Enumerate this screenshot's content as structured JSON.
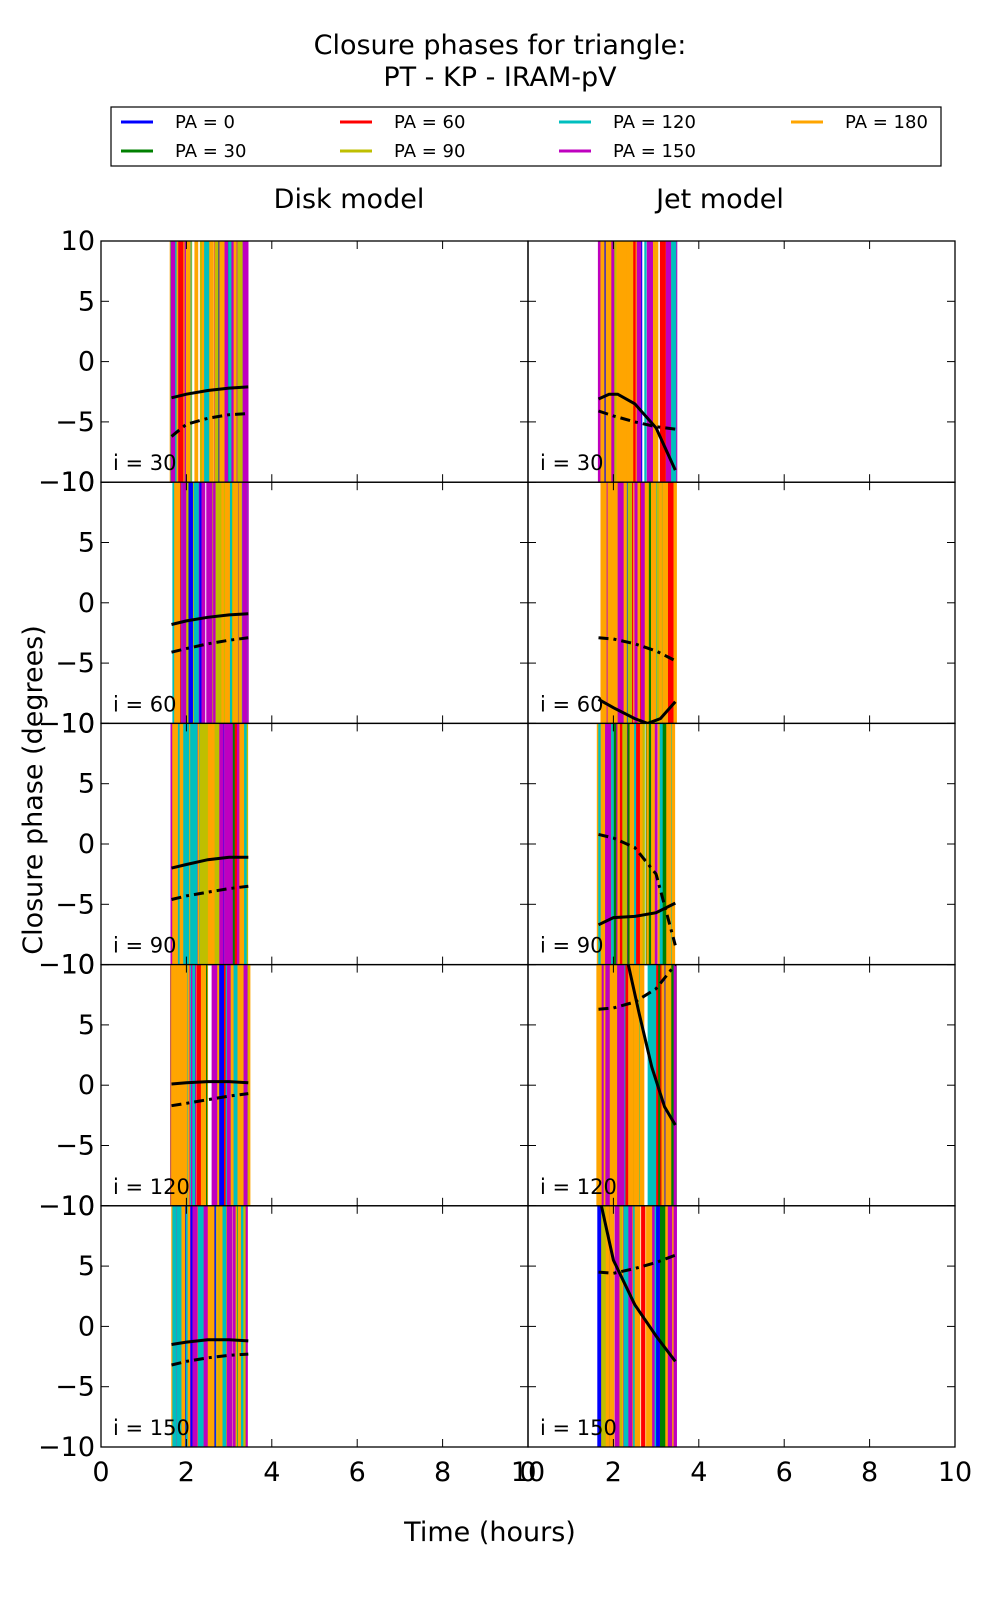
{
  "chart_data": {
    "type": "line",
    "title": "Closure phases for triangle:",
    "subtitle": "PT - KP - IRAM-pV",
    "xlabel": "Time (hours)",
    "ylabel": "Closure phase (degrees)",
    "xlim": [
      0,
      10
    ],
    "ylim": [
      -10,
      10
    ],
    "xticks": [
      "0",
      "2",
      "4",
      "6",
      "8",
      "10"
    ],
    "yticks": [
      "10",
      "5",
      "0",
      "−5",
      "−10"
    ],
    "grid": false,
    "legend_placement": "top",
    "columns": [
      "Disk model",
      "Jet model"
    ],
    "rows": [
      "i = 30",
      "i = 60",
      "i = 90",
      "i = 120",
      "i = 150"
    ],
    "legend": [
      {
        "label": "PA = 0",
        "color": "#0000ff"
      },
      {
        "label": "PA = 30",
        "color": "#008000"
      },
      {
        "label": "PA = 60",
        "color": "#ff0000"
      },
      {
        "label": "PA = 90",
        "color": "#bfbf00"
      },
      {
        "label": "PA = 120",
        "color": "#00bfbf"
      },
      {
        "label": "PA = 150",
        "color": "#bf00bf"
      },
      {
        "label": "PA = 180",
        "color": "#ffa500"
      }
    ],
    "time_range": [
      1.65,
      3.45
    ],
    "curves": [
      [
        [
          [
            1.65,
            -3.0
          ],
          [
            2.0,
            -2.7
          ],
          [
            2.5,
            -2.4
          ],
          [
            3.0,
            -2.2
          ],
          [
            3.45,
            -2.1
          ]
        ],
        [
          [
            1.65,
            -6.2
          ],
          [
            2.0,
            -5.2
          ],
          [
            2.5,
            -4.7
          ],
          [
            3.0,
            -4.4
          ],
          [
            3.45,
            -4.3
          ]
        ]
      ],
      [
        [
          [
            1.65,
            -1.8
          ],
          [
            2.0,
            -1.5
          ],
          [
            2.5,
            -1.2
          ],
          [
            3.0,
            -1.0
          ],
          [
            3.45,
            -0.9
          ]
        ],
        [
          [
            1.65,
            -4.1
          ],
          [
            2.0,
            -3.8
          ],
          [
            2.5,
            -3.4
          ],
          [
            3.0,
            -3.1
          ],
          [
            3.45,
            -2.9
          ]
        ]
      ],
      [
        [
          [
            1.65,
            -2.0
          ],
          [
            2.0,
            -1.7
          ],
          [
            2.5,
            -1.3
          ],
          [
            3.0,
            -1.1
          ],
          [
            3.45,
            -1.1
          ]
        ],
        [
          [
            1.65,
            -4.6
          ],
          [
            2.0,
            -4.3
          ],
          [
            2.5,
            -4.0
          ],
          [
            3.0,
            -3.7
          ],
          [
            3.45,
            -3.5
          ]
        ]
      ],
      [
        [
          [
            1.65,
            0.1
          ],
          [
            2.0,
            0.2
          ],
          [
            2.5,
            0.3
          ],
          [
            3.0,
            0.3
          ],
          [
            3.45,
            0.2
          ]
        ],
        [
          [
            1.65,
            -1.7
          ],
          [
            2.0,
            -1.5
          ],
          [
            2.5,
            -1.2
          ],
          [
            3.0,
            -0.9
          ],
          [
            3.45,
            -0.7
          ]
        ]
      ],
      [
        [
          [
            1.65,
            -1.5
          ],
          [
            2.0,
            -1.3
          ],
          [
            2.5,
            -1.1
          ],
          [
            3.0,
            -1.1
          ],
          [
            3.45,
            -1.2
          ]
        ],
        [
          [
            1.65,
            -3.2
          ],
          [
            2.0,
            -2.9
          ],
          [
            2.5,
            -2.6
          ],
          [
            3.0,
            -2.4
          ],
          [
            3.45,
            -2.3
          ]
        ]
      ],
      [
        [
          [
            1.65,
            -3.1
          ],
          [
            1.9,
            -2.7
          ],
          [
            2.1,
            -2.7
          ],
          [
            2.5,
            -3.5
          ],
          [
            3.0,
            -5.5
          ],
          [
            3.45,
            -9.0
          ]
        ],
        [
          [
            1.65,
            -4.1
          ],
          [
            2.0,
            -4.5
          ],
          [
            2.5,
            -5.0
          ],
          [
            3.0,
            -5.4
          ],
          [
            3.45,
            -5.6
          ]
        ]
      ],
      [
        [
          [
            1.65,
            -8.0
          ],
          [
            2.0,
            -8.7
          ],
          [
            2.5,
            -9.6
          ],
          [
            2.8,
            -10.0
          ],
          [
            3.1,
            -9.6
          ],
          [
            3.45,
            -8.2
          ]
        ],
        [
          [
            1.65,
            -2.9
          ],
          [
            2.0,
            -3.0
          ],
          [
            2.5,
            -3.4
          ],
          [
            3.0,
            -4.0
          ],
          [
            3.45,
            -4.8
          ]
        ]
      ],
      [
        [
          [
            1.65,
            -6.7
          ],
          [
            2.0,
            -6.1
          ],
          [
            2.5,
            -6.0
          ],
          [
            3.0,
            -5.7
          ],
          [
            3.45,
            -4.9
          ]
        ],
        [
          [
            1.65,
            0.8
          ],
          [
            2.0,
            0.5
          ],
          [
            2.5,
            -0.3
          ],
          [
            3.0,
            -2.5
          ],
          [
            3.45,
            -8.4
          ]
        ]
      ],
      [
        [
          [
            2.35,
            10.0
          ],
          [
            2.6,
            6.0
          ],
          [
            2.9,
            1.5
          ],
          [
            3.2,
            -1.8
          ],
          [
            3.45,
            -3.3
          ]
        ],
        [
          [
            1.65,
            6.3
          ],
          [
            2.0,
            6.4
          ],
          [
            2.5,
            6.9
          ],
          [
            3.0,
            8.0
          ],
          [
            3.45,
            10.0
          ]
        ]
      ],
      [
        [
          [
            1.72,
            10.0
          ],
          [
            2.0,
            5.5
          ],
          [
            2.5,
            1.8
          ],
          [
            3.0,
            -0.8
          ],
          [
            3.45,
            -2.9
          ]
        ],
        [
          [
            1.65,
            4.5
          ],
          [
            2.0,
            4.4
          ],
          [
            2.5,
            4.8
          ],
          [
            3.0,
            5.3
          ],
          [
            3.45,
            5.9
          ]
        ]
      ]
    ]
  }
}
